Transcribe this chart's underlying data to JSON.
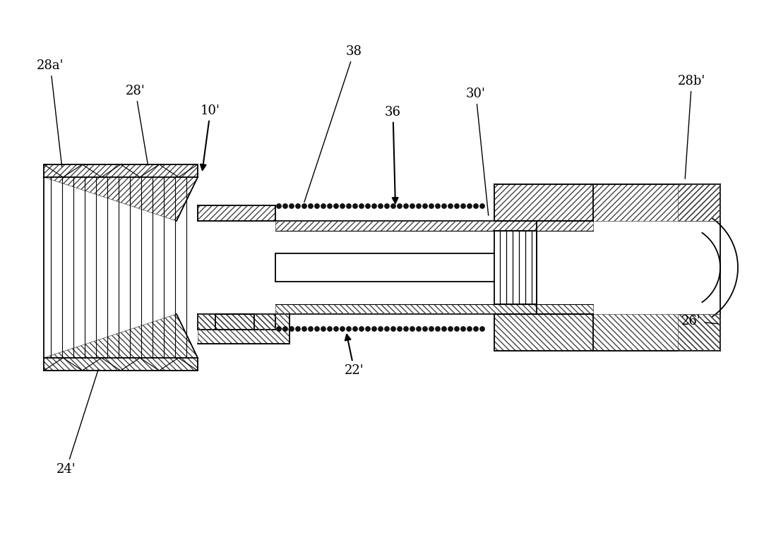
{
  "bg_color": "#ffffff",
  "line_color": "#000000",
  "hatch_color": "#444444",
  "labels": {
    "28a_prime": "28a'",
    "28_prime": "28'",
    "10_prime": "10'",
    "38": "38",
    "36": "36",
    "30_prime": "30'",
    "28b_prime": "28b'",
    "22_prime": "22'",
    "24_prime": "24'",
    "26_prime": "26'"
  }
}
